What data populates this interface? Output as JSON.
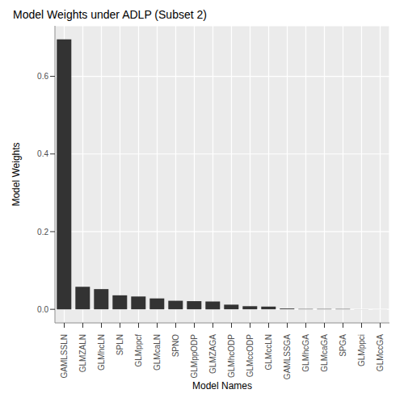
{
  "chart_data": {
    "type": "bar",
    "title": "Model Weights under ADLP (Subset 2)",
    "x_label": "Model Names",
    "y_label": "Model Weights",
    "categories": [
      "GAMLSSLN",
      "GLMZALN",
      "GLMhcLN",
      "SPLN",
      "GLMppcf",
      "GLMcaLN",
      "SPNO",
      "GLMppODP",
      "GLMZAGA",
      "GLMhcODP",
      "GLMccODP",
      "GLMccLN",
      "GAMLSSGA",
      "GLMhcGA",
      "GLMcaGA",
      "SPGA",
      "GLMppci",
      "GLMccGA"
    ],
    "values": [
      0.695,
      0.058,
      0.052,
      0.036,
      0.033,
      0.028,
      0.022,
      0.021,
      0.02,
      0.012,
      0.008,
      0.007,
      0.002,
      0.001,
      0.001,
      0.001,
      0.0002,
      0.0001
    ],
    "color": "#333333",
    "ylim": [
      -0.035,
      0.73
    ],
    "yticks": [
      {
        "value": 0,
        "label": "0.0"
      },
      {
        "value": 0.2,
        "label": "0.2"
      },
      {
        "value": 0.4,
        "label": "0.4"
      },
      {
        "value": 0.6,
        "label": "0.6"
      }
    ],
    "grid": true
  }
}
